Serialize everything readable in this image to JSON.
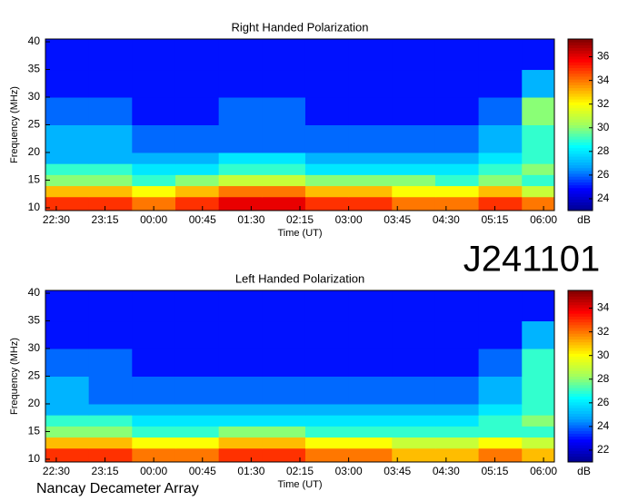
{
  "chart_data": [
    {
      "type": "heatmap",
      "title": "Right Handed Polarization",
      "xlabel": "Time (UT)",
      "ylabel": "Frequency (MHz)",
      "xlim": [
        "22:20",
        "06:10"
      ],
      "xticks": [
        "22:30",
        "23:15",
        "00:00",
        "00:45",
        "01:30",
        "02:15",
        "03:00",
        "03:45",
        "04:30",
        "05:15",
        "06:00"
      ],
      "ylim": [
        9.5,
        40.5
      ],
      "yticks": [
        10,
        15,
        20,
        25,
        30,
        35,
        40
      ],
      "xbins": [
        "22:20",
        "23:00",
        "23:40",
        "00:20",
        "01:00",
        "01:40",
        "02:20",
        "03:00",
        "03:40",
        "04:20",
        "05:00",
        "05:40",
        "06:10"
      ],
      "ybins": [
        9.5,
        12,
        14,
        16,
        18,
        20,
        25,
        30,
        35,
        40.5
      ],
      "z": [
        [
          35,
          35,
          34,
          35,
          36,
          36,
          35,
          35,
          34,
          34,
          35,
          34
        ],
        [
          33,
          33,
          32,
          33,
          34,
          34,
          33,
          33,
          32,
          32,
          33,
          31
        ],
        [
          30,
          30,
          29,
          30,
          31,
          31,
          30,
          30,
          30,
          29,
          30,
          29
        ],
        [
          29,
          29,
          28,
          28,
          29,
          29,
          28,
          28,
          28,
          28,
          29,
          30
        ],
        [
          27,
          27,
          27,
          27,
          28,
          28,
          27,
          27,
          27,
          27,
          28,
          29
        ],
        [
          27,
          27,
          26,
          26,
          26,
          26,
          26,
          26,
          26,
          26,
          27,
          29
        ],
        [
          26,
          26,
          25,
          25,
          26,
          26,
          25,
          25,
          25,
          25,
          26,
          30
        ],
        [
          25,
          25,
          25,
          25,
          25,
          25,
          25,
          25,
          25,
          25,
          25,
          27
        ],
        [
          25,
          25,
          25,
          25,
          25,
          25,
          25,
          25,
          25,
          25,
          25,
          25
        ]
      ],
      "colormap": [
        "#00008f",
        "#0000ff",
        "#00a0ff",
        "#00ffff",
        "#a0ff60",
        "#ffff00",
        "#ff8000",
        "#ff0000",
        "#800000"
      ],
      "zlim": [
        23,
        37.5
      ],
      "zticks": [
        24,
        26,
        28,
        30,
        32,
        34,
        36
      ],
      "zlabel": "dB"
    },
    {
      "type": "heatmap",
      "title": "Left Handed Polarization",
      "xlabel": "Time (UT)",
      "ylabel": "Frequency (MHz)",
      "xlim": [
        "22:20",
        "06:10"
      ],
      "xticks": [
        "22:30",
        "23:15",
        "00:00",
        "00:45",
        "01:30",
        "02:15",
        "03:00",
        "03:45",
        "04:30",
        "05:15",
        "06:00"
      ],
      "ylim": [
        9.5,
        40.5
      ],
      "yticks": [
        10,
        15,
        20,
        25,
        30,
        35,
        40
      ],
      "xbins": [
        "22:20",
        "23:00",
        "23:40",
        "00:20",
        "01:00",
        "01:40",
        "02:20",
        "03:00",
        "03:40",
        "04:20",
        "05:00",
        "05:40",
        "06:10"
      ],
      "ybins": [
        9.5,
        12,
        14,
        16,
        18,
        20,
        25,
        30,
        35,
        40.5
      ],
      "z": [
        [
          33,
          33,
          32,
          32,
          33,
          33,
          32,
          32,
          31,
          31,
          32,
          31
        ],
        [
          31,
          31,
          30,
          30,
          31,
          31,
          30,
          30,
          29,
          29,
          30,
          29
        ],
        [
          28,
          28,
          27,
          27,
          28,
          28,
          27,
          27,
          27,
          27,
          27,
          27
        ],
        [
          27,
          27,
          26,
          26,
          26,
          26,
          26,
          26,
          26,
          26,
          27,
          28
        ],
        [
          25,
          25,
          25,
          25,
          25,
          25,
          25,
          25,
          25,
          25,
          26,
          27
        ],
        [
          25,
          24,
          24,
          24,
          24,
          24,
          24,
          24,
          24,
          24,
          25,
          27
        ],
        [
          24,
          24,
          23,
          23,
          23,
          23,
          23,
          23,
          23,
          23,
          24,
          27
        ],
        [
          23,
          23,
          23,
          23,
          23,
          23,
          23,
          23,
          23,
          23,
          23,
          25
        ],
        [
          23,
          23,
          23,
          23,
          23,
          23,
          23,
          23,
          23,
          23,
          23,
          23
        ]
      ],
      "colormap": [
        "#00008f",
        "#0000ff",
        "#00a0ff",
        "#00ffff",
        "#a0ff60",
        "#ffff00",
        "#ff8000",
        "#ff0000",
        "#800000"
      ],
      "zlim": [
        21,
        35.5
      ],
      "zticks": [
        22,
        24,
        26,
        28,
        30,
        32,
        34
      ],
      "zlabel": "dB"
    }
  ],
  "label": "J241101",
  "footer": "Nancay Decameter Array"
}
